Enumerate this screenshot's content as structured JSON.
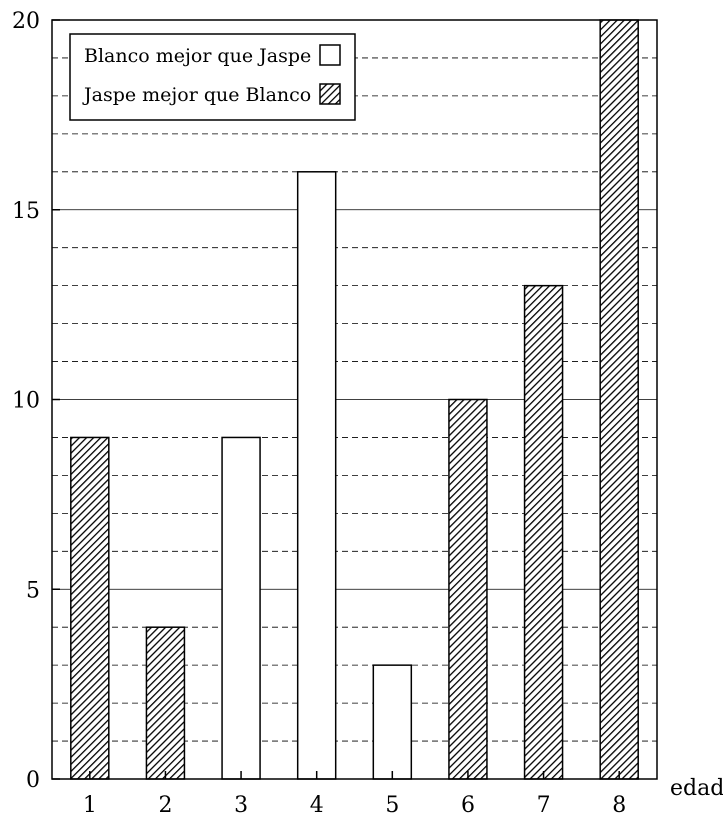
{
  "chart_data": {
    "type": "bar",
    "categories": [
      "1",
      "2",
      "3",
      "4",
      "5",
      "6",
      "7",
      "8"
    ],
    "series": [
      {
        "name": "Blanco mejor que Jaspe",
        "values": [
          null,
          null,
          9,
          16,
          3,
          null,
          null,
          null
        ],
        "fill": "plain"
      },
      {
        "name": "Jaspe mejor que Blanco",
        "values": [
          9,
          4,
          null,
          null,
          null,
          10,
          13,
          20
        ],
        "fill": "hatched"
      }
    ],
    "title": "",
    "xlabel": "edad",
    "ylabel": "",
    "ylim": [
      0,
      20
    ],
    "yticks": [
      "0",
      "5",
      "10",
      "15",
      "20"
    ],
    "minor_gridline_step": 1,
    "grid": true,
    "legend_position": "top-left"
  }
}
